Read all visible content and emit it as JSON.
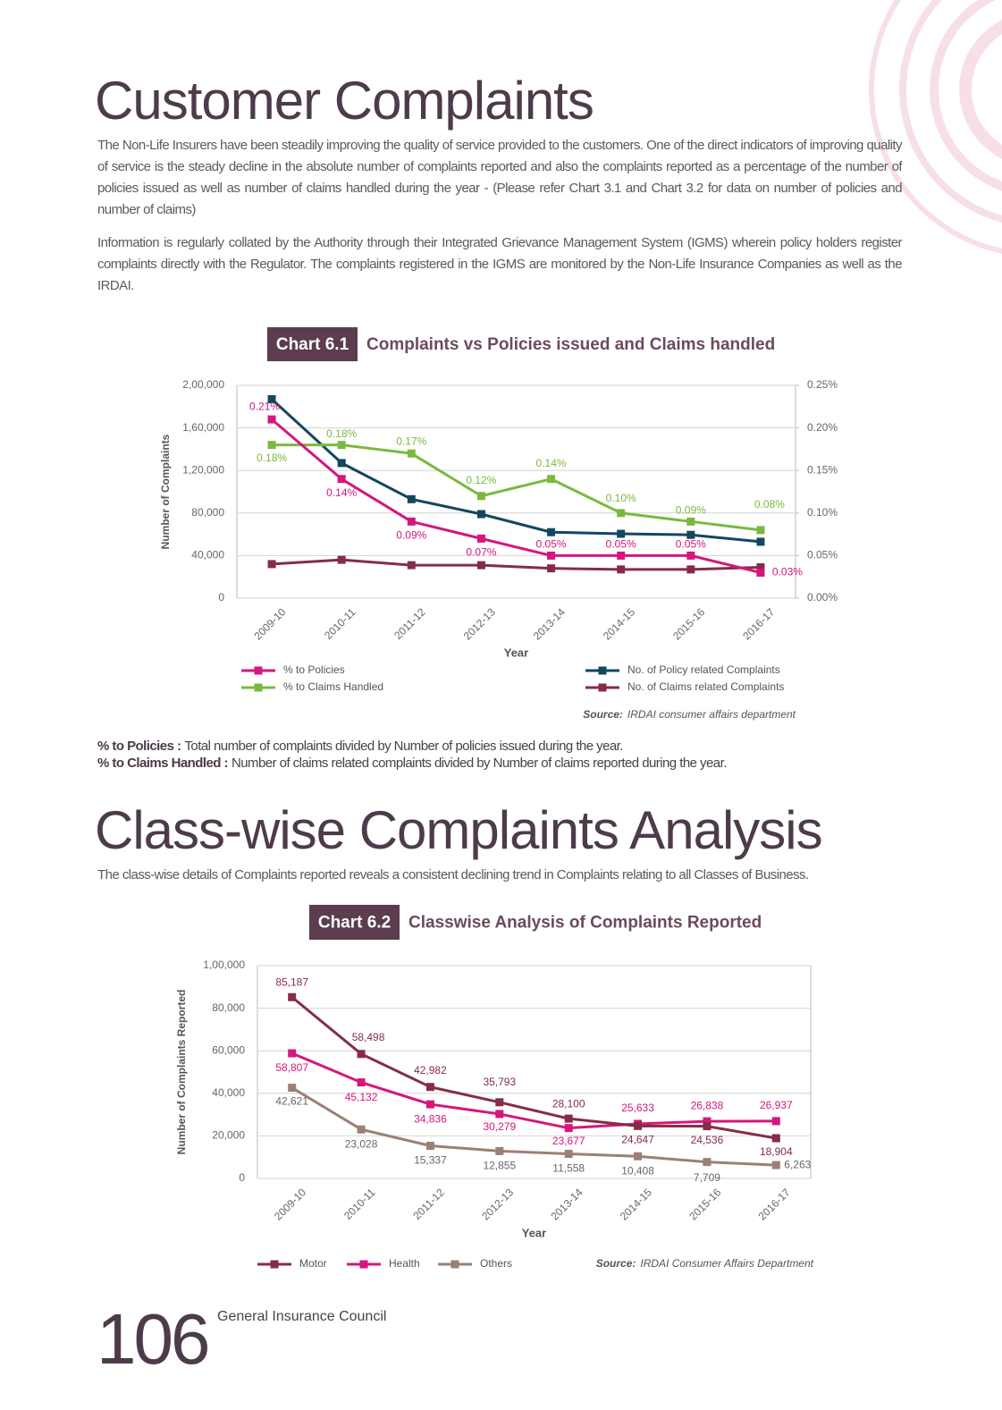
{
  "document": {
    "heading": "Customer Complaints",
    "paragraphs": [
      "The Non-Life Insurers have been steadily improving the quality of service provided to the customers. One of the direct indicators of improving quality of service is the steady decline in the absolute number of complaints reported and also the complaints reported as a percentage of the number of policies issued as well as number of claims handled during the year - (Please refer Chart 3.1 and Chart 3.2 for data on number of policies and number of claims)",
      "Information is regularly collated by the Authority through their Integrated Grievance Management System (IGMS) wherein policy holders register complaints directly with the Regulator. The complaints registered in the IGMS are monitored by the Non-Life Insurance Companies as well as the IRDAI."
    ],
    "notes": [
      {
        "term": "% to Policies :",
        "text": "Total number of complaints divided by Number of policies issued during the year."
      },
      {
        "term": "% to Claims Handled :",
        "text": "Number of claims related complaints divided by Number of claims reported during the year."
      }
    ],
    "heading2": "Class-wise Complaints Analysis",
    "paragraph3": "The class-wise details of Complaints reported reveals a consistent declining trend in Complaints relating to all Classes of Business.",
    "footer": {
      "page_number": "106",
      "publisher": "General Insurance Council"
    }
  },
  "chart_data": [
    {
      "type": "line",
      "label": "Chart 6.1",
      "title": "Complaints vs Policies issued and Claims handled",
      "xlabel": "Year",
      "ylabel": "Number of Complaints",
      "categories": [
        "2009-10",
        "2010-11",
        "2011-12",
        "2012-13",
        "2013-14",
        "2014-15",
        "2015-16",
        "2016-17"
      ],
      "ylim": [
        0,
        200000
      ],
      "yticks": [
        0,
        {
          "value": 40000,
          "label": "40,000"
        },
        {
          "value": 80000,
          "label": "80,000"
        },
        {
          "value": 120000,
          "label": "1,20,000"
        },
        {
          "value": 160000,
          "label": "1,60,000"
        },
        {
          "value": 200000,
          "label": "2,00,000"
        }
      ],
      "y2lim": [
        0,
        0.25
      ],
      "y2ticks": [
        {
          "value": 0,
          "label": "0.00%"
        },
        {
          "value": 0.05,
          "label": "0.05%"
        },
        {
          "value": 0.1,
          "label": "0.10%"
        },
        {
          "value": 0.15,
          "label": "0.15%"
        },
        {
          "value": 0.2,
          "label": "0.20%"
        },
        {
          "value": 0.25,
          "label": "0.25%"
        }
      ],
      "grid": true,
      "legend": "bottom",
      "series": [
        {
          "name": "% to Policies",
          "color": "#d4177d",
          "axis": "y2",
          "values": [
            0.21,
            0.14,
            0.09,
            0.07,
            0.05,
            0.05,
            0.05,
            0.03
          ],
          "value_labels": [
            "0.21%",
            "0.14%",
            "0.09%",
            "0.07%",
            "0.05%",
            "0.05%",
            "0.05%",
            "0.03%"
          ]
        },
        {
          "name": "% to Claims Handled",
          "color": "#7ab940",
          "axis": "y2",
          "values": [
            0.18,
            0.18,
            0.17,
            0.12,
            0.14,
            0.1,
            0.09,
            0.08
          ],
          "value_labels": [
            "0.18%",
            "0.18%",
            "0.17%",
            "0.12%",
            "0.14%",
            "0.10%",
            "0.09%",
            "0.08%"
          ]
        },
        {
          "name": "No. of Policy related Complaints",
          "color": "#13475f",
          "values": [
            187000,
            127000,
            93000,
            79000,
            62000,
            60500,
            59500,
            53000
          ]
        },
        {
          "name": "No. of Claims related Complaints",
          "color": "#862d45",
          "values": [
            32000,
            36000,
            31000,
            31000,
            28000,
            27000,
            27000,
            29000
          ]
        }
      ],
      "source_label": "Source:",
      "source": "IRDAI consumer affairs department"
    },
    {
      "type": "line",
      "label": "Chart 6.2",
      "title": "Classwise Analysis of Complaints Reported",
      "xlabel": "Year",
      "ylabel": "Number of Complaints Reported",
      "categories": [
        "2009-10",
        "2010-11",
        "2011-12",
        "2012-13",
        "2013-14",
        "2014-15",
        "2015-16",
        "2016-17"
      ],
      "ylim": [
        0,
        100000
      ],
      "yticks": [
        0,
        {
          "value": 20000,
          "label": "20,000"
        },
        {
          "value": 40000,
          "label": "40,000"
        },
        {
          "value": 60000,
          "label": "60,000"
        },
        {
          "value": 80000,
          "label": "80,000"
        },
        {
          "value": 100000,
          "label": "1,00,000"
        }
      ],
      "grid": true,
      "legend": "bottom",
      "series": [
        {
          "name": "Motor",
          "color": "#862d45",
          "values": [
            85187,
            58498,
            42982,
            35793,
            28100,
            24647,
            24536,
            18904
          ],
          "value_labels": [
            "85,187",
            "58,498",
            "42,982",
            "35,793",
            "28,100",
            "24,647",
            "24,536",
            "18,904"
          ]
        },
        {
          "name": "Health",
          "color": "#d4177d",
          "values": [
            58807,
            45132,
            34836,
            30279,
            23677,
            25633,
            26838,
            26937
          ],
          "value_labels": [
            "58,807",
            "45,132",
            "34,836",
            "30,279",
            "23,677",
            "25,633",
            "26,838",
            "26,937"
          ]
        },
        {
          "name": "Others",
          "color": "#9b8076",
          "values": [
            42621,
            23028,
            15337,
            12855,
            11558,
            10408,
            7709,
            6263
          ],
          "value_labels": [
            "42,621",
            "23,028",
            "15,337",
            "12,855",
            "11,558",
            "10,408",
            "7,709",
            "6,263"
          ]
        }
      ],
      "source_label": "Source:",
      "source": "IRDAI Consumer Affairs Department"
    }
  ]
}
